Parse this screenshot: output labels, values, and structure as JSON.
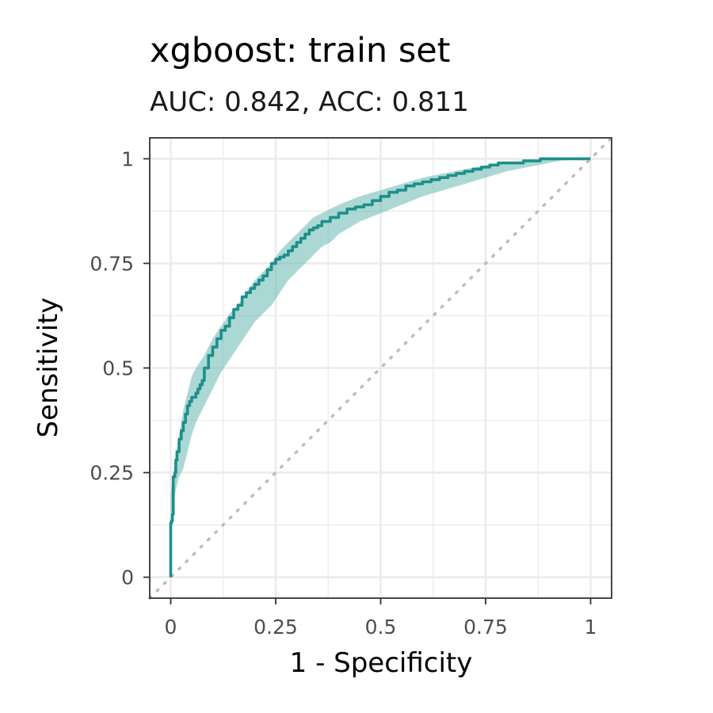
{
  "chart_data": {
    "type": "line",
    "title": "xgboost: train set",
    "subtitle": "AUC: 0.842, ACC: 0.811",
    "xlabel": "1 - Specificity",
    "ylabel": "Sensitivity",
    "xlim": [
      -0.05,
      1.05
    ],
    "ylim": [
      -0.05,
      1.05
    ],
    "x_ticks": [
      0,
      0.25,
      0.5,
      0.75,
      1
    ],
    "x_tick_labels": [
      "0",
      "0.25",
      "0.5",
      "0.75",
      "1"
    ],
    "y_ticks": [
      0,
      0.25,
      0.5,
      0.75,
      1
    ],
    "y_tick_labels": [
      "0",
      "0.25",
      "0.5",
      "0.75",
      "1"
    ],
    "grid": true,
    "legend": "none",
    "colors": {
      "curve": "#1f8f8a",
      "band": "#66b8b3",
      "reference": "#bdbdbd"
    },
    "series": [
      {
        "role": "roc-curve",
        "x": [
          0,
          0,
          0.002,
          0.004,
          0.006,
          0.008,
          0.01,
          0.012,
          0.015,
          0.02,
          0.025,
          0.03,
          0.035,
          0.04,
          0.045,
          0.05,
          0.055,
          0.06,
          0.065,
          0.07,
          0.075,
          0.08,
          0.09,
          0.1,
          0.11,
          0.12,
          0.13,
          0.14,
          0.15,
          0.16,
          0.17,
          0.18,
          0.19,
          0.2,
          0.21,
          0.22,
          0.23,
          0.24,
          0.25,
          0.26,
          0.27,
          0.28,
          0.29,
          0.3,
          0.31,
          0.32,
          0.33,
          0.34,
          0.35,
          0.36,
          0.38,
          0.4,
          0.42,
          0.44,
          0.46,
          0.48,
          0.5,
          0.52,
          0.54,
          0.56,
          0.58,
          0.6,
          0.62,
          0.64,
          0.66,
          0.68,
          0.7,
          0.72,
          0.74,
          0.76,
          0.78,
          0.8,
          0.82,
          0.84,
          0.86,
          0.88,
          0.9,
          0.92,
          0.94,
          0.96,
          0.98,
          1
        ],
        "y": [
          0,
          0.12,
          0.13,
          0.135,
          0.15,
          0.24,
          0.24,
          0.25,
          0.28,
          0.3,
          0.33,
          0.35,
          0.37,
          0.39,
          0.41,
          0.42,
          0.43,
          0.43,
          0.44,
          0.45,
          0.46,
          0.47,
          0.5,
          0.53,
          0.55,
          0.57,
          0.59,
          0.6,
          0.62,
          0.64,
          0.65,
          0.67,
          0.68,
          0.69,
          0.7,
          0.71,
          0.72,
          0.735,
          0.75,
          0.76,
          0.765,
          0.77,
          0.78,
          0.79,
          0.8,
          0.81,
          0.82,
          0.83,
          0.835,
          0.84,
          0.85,
          0.86,
          0.87,
          0.88,
          0.885,
          0.89,
          0.9,
          0.91,
          0.92,
          0.925,
          0.935,
          0.94,
          0.945,
          0.95,
          0.955,
          0.96,
          0.965,
          0.97,
          0.975,
          0.98,
          0.985,
          0.99,
          0.99,
          0.99,
          0.995,
          0.995,
          1,
          1,
          1,
          1,
          1,
          1
        ]
      },
      {
        "role": "confidence-band-upper",
        "x": [
          0,
          0.01,
          0.02,
          0.03,
          0.04,
          0.05,
          0.06,
          0.08,
          0.1,
          0.12,
          0.14,
          0.16,
          0.18,
          0.2,
          0.22,
          0.24,
          0.26,
          0.28,
          0.3,
          0.32,
          0.34,
          0.36,
          0.38,
          0.4,
          0.45,
          0.5,
          0.55,
          0.6,
          0.65,
          0.7,
          0.75,
          0.8,
          0.85,
          0.9,
          0.95,
          1
        ],
        "y": [
          0.2,
          0.28,
          0.34,
          0.4,
          0.44,
          0.48,
          0.5,
          0.53,
          0.57,
          0.6,
          0.63,
          0.65,
          0.68,
          0.71,
          0.73,
          0.75,
          0.78,
          0.8,
          0.82,
          0.84,
          0.86,
          0.87,
          0.88,
          0.89,
          0.91,
          0.925,
          0.94,
          0.955,
          0.965,
          0.975,
          0.985,
          0.99,
          0.995,
          1,
          1,
          1
        ]
      },
      {
        "role": "confidence-band-lower",
        "x": [
          0,
          0.01,
          0.02,
          0.03,
          0.04,
          0.05,
          0.06,
          0.08,
          0.1,
          0.12,
          0.14,
          0.16,
          0.18,
          0.2,
          0.22,
          0.24,
          0.26,
          0.28,
          0.3,
          0.32,
          0.34,
          0.36,
          0.38,
          0.4,
          0.45,
          0.5,
          0.55,
          0.6,
          0.65,
          0.7,
          0.75,
          0.8,
          0.85,
          0.9,
          0.95,
          1
        ],
        "y": [
          0.1,
          0.2,
          0.24,
          0.26,
          0.3,
          0.34,
          0.37,
          0.41,
          0.45,
          0.49,
          0.52,
          0.55,
          0.58,
          0.61,
          0.63,
          0.65,
          0.68,
          0.71,
          0.73,
          0.75,
          0.77,
          0.79,
          0.8,
          0.82,
          0.85,
          0.87,
          0.89,
          0.91,
          0.925,
          0.94,
          0.955,
          0.97,
          0.98,
          0.99,
          1,
          1
        ]
      },
      {
        "role": "reference-diagonal",
        "x": [
          -0.05,
          1.05
        ],
        "y": [
          -0.05,
          1.05
        ]
      }
    ]
  }
}
